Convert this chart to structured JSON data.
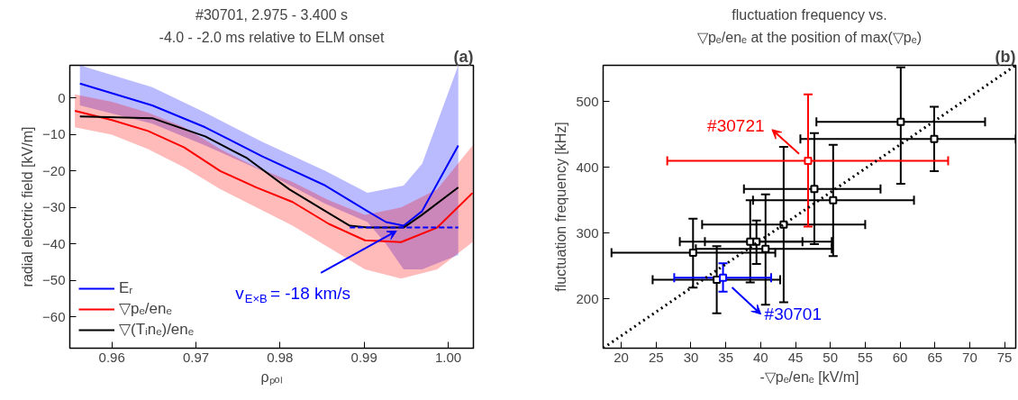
{
  "chart_data": [
    {
      "type": "line",
      "title": "#30701, 2.975 - 3.400 s",
      "subtitle": "-4.0 - -2.0 ms relative to ELM onset",
      "xlabel": "ρₚₒₗ",
      "ylabel": "radial electric field [kV/m]",
      "xlim": [
        0.955,
        1.003
      ],
      "ylim": [
        -68.6,
        9
      ],
      "xticks": [
        0.96,
        0.97,
        0.98,
        0.99,
        {
          "value": 1.0,
          "label": "1.00"
        }
      ],
      "yticks": [
        0,
        -10,
        -20,
        -30,
        -40,
        -50,
        -60
      ],
      "legend": "bottom left",
      "series": [
        {
          "name": "Eᵣ",
          "color": "#0000ff",
          "x": [
            0.9562,
            0.9648,
            0.9711,
            0.9779,
            0.9854,
            0.9904,
            0.9926,
            0.9947,
            0.9969,
            1.0012
          ],
          "values": [
            4,
            -2,
            -8,
            -16,
            -24,
            -31,
            -34,
            -35,
            -31,
            -13
          ],
          "lower": [
            -2,
            -7,
            -13,
            -20,
            -29,
            -34,
            -40,
            -47,
            -47,
            -43
          ],
          "upper": [
            9,
            3,
            -4,
            -12,
            -20,
            -26,
            -25,
            -24,
            -18,
            9
          ]
        },
        {
          "name": "▽pₑ/enₑ",
          "color": "#ff0000",
          "x": [
            0.9556,
            0.96,
            0.9643,
            0.9686,
            0.9729,
            0.9772,
            0.9815,
            0.9858,
            0.9901,
            0.9944,
            0.9987,
            1.0029
          ],
          "values": [
            -3.5,
            -6,
            -9,
            -13.5,
            -20,
            -24.5,
            -28.5,
            -34.5,
            -39,
            -39.5,
            -35.5,
            -26
          ],
          "lower": [
            -8,
            -10,
            -14,
            -19,
            -25,
            -30,
            -35,
            -41,
            -47,
            -49.5,
            -47,
            -39.5
          ],
          "upper": [
            1,
            -1,
            -4,
            -8,
            -14,
            -19,
            -23,
            -28,
            -32,
            -30,
            -25,
            -13
          ]
        },
        {
          "name": "▽(Tᵢnₑ)/enₑ",
          "color": "#000000",
          "x": [
            0.9562,
            0.9648,
            0.9711,
            0.9761,
            0.9811,
            0.9854,
            0.9883,
            0.9904,
            0.9947,
            0.9969,
            1.0012
          ],
          "values": [
            -5,
            -5.5,
            -10.5,
            -16.5,
            -25,
            -31,
            -35,
            -35.5,
            -35.5,
            -32,
            -24.5
          ]
        },
        {
          "type": "line",
          "color": "#0000ff",
          "line_style": "dashed",
          "x": [
            0.9883,
            1.0012
          ],
          "values": [
            -35.5,
            -35.5
          ]
        }
      ],
      "annotations": [
        "(a)",
        {
          "text": "v$_{E×B}$ = -18 km/s",
          "x": 0.9945,
          "y": -35.5
        }
      ]
    },
    {
      "type": "scatter",
      "title": "fluctuation frequency vs.",
      "subtitle": "▽pₑ/enₑ at the position of max(▽pₑ)",
      "xlabel": "-▽pₑ/enₑ [kV/m]",
      "ylabel": "fluctuation frequency [kHz]",
      "xlim": [
        17.4,
        76.6
      ],
      "ylim": [
        125,
        555
      ],
      "xticks": [
        20,
        25,
        30,
        35,
        40,
        45,
        50,
        55,
        60,
        65,
        70,
        75
      ],
      "yticks": [
        200,
        300,
        400,
        500
      ],
      "series": [
        {
          "color": "#000000",
          "marker": "square",
          "x": [
            30.3,
            33.7,
            38.5,
            39.4,
            40.7,
            43.3,
            47.7,
            50.4,
            60.1,
            64.9
          ],
          "values": [
            270,
            229,
            287,
            287,
            276,
            313,
            367,
            350,
            469,
            443
          ],
          "xerrors": [
            [
              18.6,
              42.1
            ],
            [
              24.5,
              42.8
            ],
            [
              32.0,
              46.0
            ],
            [
              28.4,
              50.2
            ],
            [
              30.7,
              50.2
            ],
            [
              31.6,
              55.0
            ],
            [
              37.6,
              57.2
            ],
            [
              38.9,
              62.0
            ],
            [
              48.0,
              72.2
            ],
            [
              45.7,
              76.6
            ]
          ],
          "errors": [
            [
              217,
              322
            ],
            [
              178,
              280
            ],
            [
              225,
              350
            ],
            [
              253,
              319
            ],
            [
              191,
              359
            ],
            [
              195,
              431
            ],
            [
              283,
              452
            ],
            [
              265,
              434
            ],
            [
              375,
              552
            ],
            [
              394,
              492
            ]
          ]
        },
        {
          "color": "#ff0000",
          "marker": "square",
          "x": [
            46.8
          ],
          "values": [
            410
          ],
          "xerrors": [
            [
              26.6,
              66.9
            ]
          ],
          "errors": [
            [
              310,
              511
            ]
          ]
        },
        {
          "color": "#0000ff",
          "marker": "square",
          "x": [
            34.6
          ],
          "values": [
            232
          ],
          "xerrors": [
            [
              27.6,
              41.5
            ]
          ],
          "errors": [
            [
              211,
              254
            ]
          ]
        },
        {
          "type": "line",
          "color": "#000000",
          "line_style": "dotted",
          "x": [
            17.4,
            76.6
          ],
          "values": [
            125,
            555
          ]
        }
      ],
      "annotations": [
        "(b)",
        {
          "text": "#30721",
          "x": 46.8,
          "y": 410
        },
        {
          "text": "#30701",
          "x": 34.6,
          "y": 232
        }
      ]
    }
  ]
}
